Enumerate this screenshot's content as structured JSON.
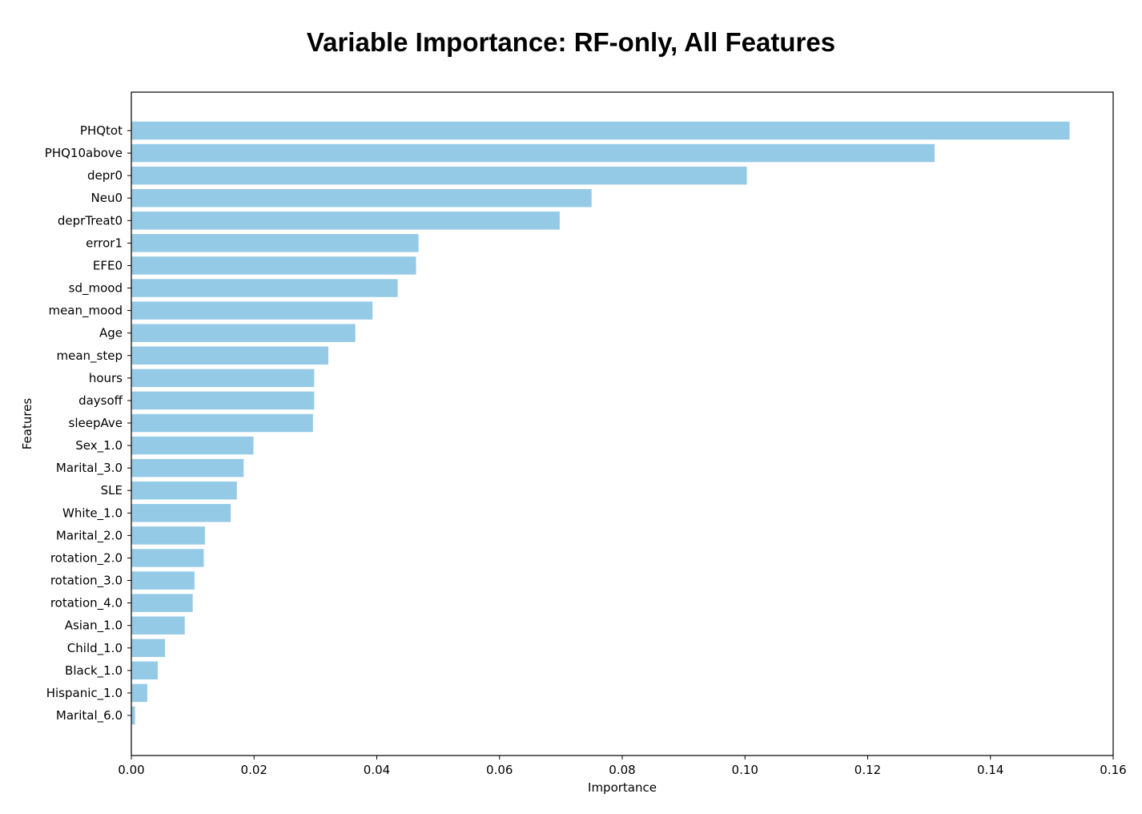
{
  "chart_data": {
    "type": "bar",
    "orientation": "horizontal",
    "title": "Variable Importance: RF-only, All Features",
    "xlabel": "Importance",
    "ylabel": "Features",
    "xlim": [
      0,
      0.16
    ],
    "xticks": [
      "0.00",
      "0.02",
      "0.04",
      "0.06",
      "0.08",
      "0.10",
      "0.12",
      "0.14",
      "0.16"
    ],
    "xtick_values": [
      0,
      0.02,
      0.04,
      0.06,
      0.08,
      0.1,
      0.12,
      0.14,
      0.16
    ],
    "grid": false,
    "bar_color": "#95cae7",
    "categories": [
      "PHQtot",
      "PHQ10above",
      "depr0",
      "Neu0",
      "deprTreat0",
      "error1",
      "EFE0",
      "sd_mood",
      "mean_mood",
      "Age",
      "mean_step",
      "hours",
      "daysoff",
      "sleepAve",
      "Sex_1.0",
      "Marital_3.0",
      "SLE",
      "White_1.0",
      "Marital_2.0",
      "rotation_2.0",
      "rotation_3.0",
      "rotation_4.0",
      "Asian_1.0",
      "Child_1.0",
      "Black_1.0",
      "Hispanic_1.0",
      "Marital_6.0"
    ],
    "values": [
      0.1529,
      0.1309,
      0.1003,
      0.075,
      0.0698,
      0.0468,
      0.0464,
      0.0434,
      0.0393,
      0.0365,
      0.0321,
      0.0298,
      0.0298,
      0.0296,
      0.0199,
      0.0183,
      0.0172,
      0.0162,
      0.012,
      0.0118,
      0.0103,
      0.01,
      0.0087,
      0.0055,
      0.0043,
      0.0026,
      0.0006
    ]
  }
}
